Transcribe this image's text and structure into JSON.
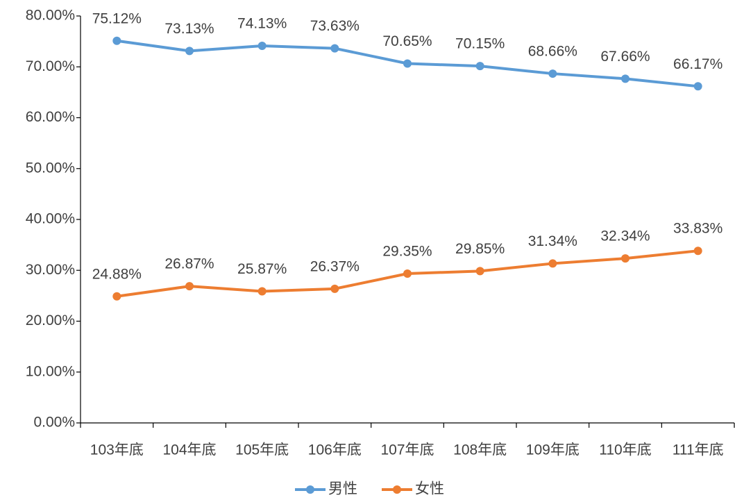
{
  "chart_data": {
    "type": "line",
    "categories": [
      "103年底",
      "104年底",
      "105年底",
      "106年底",
      "107年底",
      "108年底",
      "109年底",
      "110年底",
      "111年底"
    ],
    "series": [
      {
        "name": "男性",
        "color": "#5b9bd5",
        "values": [
          75.12,
          73.13,
          74.13,
          73.63,
          70.65,
          70.15,
          68.66,
          67.66,
          66.17
        ],
        "value_labels": [
          "75.12%",
          "73.13%",
          "74.13%",
          "73.63%",
          "70.65%",
          "70.15%",
          "68.66%",
          "67.66%",
          "66.17%"
        ]
      },
      {
        "name": "女性",
        "color": "#ed7d31",
        "values": [
          24.88,
          26.87,
          25.87,
          26.37,
          29.35,
          29.85,
          31.34,
          32.34,
          33.83
        ],
        "value_labels": [
          "24.88%",
          "26.87%",
          "25.87%",
          "26.37%",
          "29.35%",
          "29.85%",
          "31.34%",
          "32.34%",
          "33.83%"
        ]
      }
    ],
    "ylim": [
      0,
      80
    ],
    "yticks": [
      {
        "value": 0,
        "label": "0.00%"
      },
      {
        "value": 10,
        "label": "10.00%"
      },
      {
        "value": 20,
        "label": "20.00%"
      },
      {
        "value": 30,
        "label": "30.00%"
      },
      {
        "value": 40,
        "label": "40.00%"
      },
      {
        "value": 50,
        "label": "50.00%"
      },
      {
        "value": 60,
        "label": "60.00%"
      },
      {
        "value": 70,
        "label": "70.00%"
      },
      {
        "value": 80,
        "label": "80.00%"
      }
    ],
    "grid": false,
    "legend": "bottom"
  }
}
